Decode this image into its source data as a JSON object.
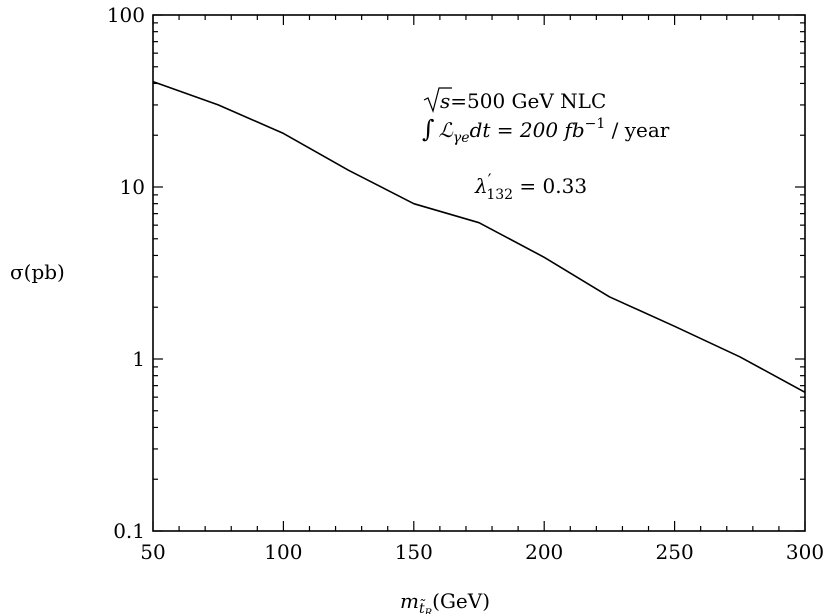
{
  "chart_data": {
    "type": "line",
    "title": "",
    "xlabel": "m_t̃R(GeV)",
    "xlabel_parts": {
      "main": "m",
      "sub": "t̃",
      "subsub": "R",
      "unit": "(GeV)"
    },
    "ylabel": "σ(pb)",
    "xlim": [
      50,
      300
    ],
    "ylim": [
      0.1,
      100
    ],
    "yscale": "log",
    "grid": false,
    "x_ticks": [
      50,
      100,
      150,
      200,
      250,
      300
    ],
    "x_tick_labels": [
      "50",
      "100",
      "150",
      "200",
      "250",
      "300"
    ],
    "y_ticks": [
      0.1,
      1,
      10,
      100
    ],
    "y_tick_labels": [
      "0.1",
      "1",
      "10",
      "100"
    ],
    "series": [
      {
        "x": [
          50,
          75,
          100,
          125,
          150,
          175,
          200,
          225,
          250,
          275,
          300
        ],
        "y": [
          41,
          30,
          20.5,
          12.5,
          8.0,
          6.2,
          3.9,
          2.3,
          1.55,
          1.03,
          0.64
        ]
      }
    ],
    "annotations": [
      {
        "id": "sqrt-s",
        "text": "√s=500 GeV NLC",
        "parts": {
          "radicand": "s",
          "rest": "=500 GeV NLC"
        }
      },
      {
        "id": "luminosity",
        "text": "∫ ℒγe dt = 200 fb⁻¹ / year",
        "parts": {
          "integral": "∫",
          "L": "ℒ",
          "sub": "γe",
          "mid": "dt = 200 ",
          "fb": "fb",
          "sup": "−1",
          "tail": " / year"
        }
      },
      {
        "id": "coupling",
        "text": "λ′132 = 0.33",
        "parts": {
          "lambda": "λ",
          "prime": "′",
          "sub": "132",
          "rest": " = 0.33"
        }
      }
    ]
  }
}
